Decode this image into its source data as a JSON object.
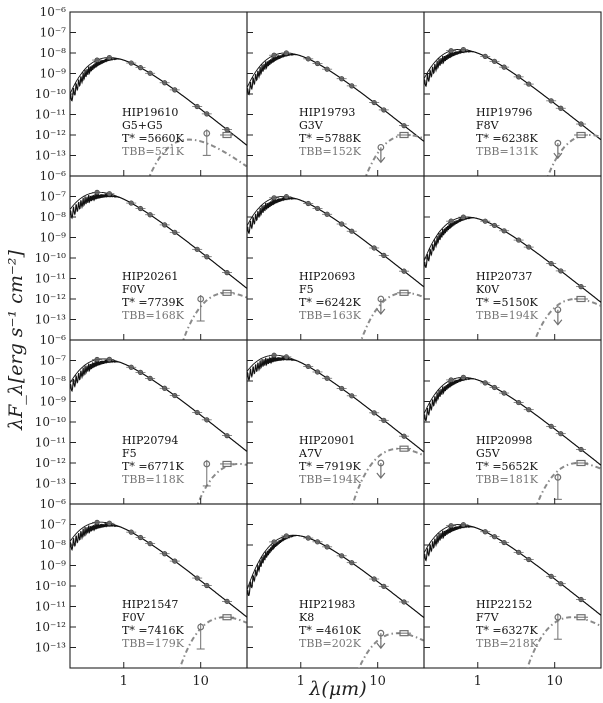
{
  "figure": {
    "y_title": "λF_λ[erg s⁻¹ cm⁻²]",
    "x_title": "λ(μm)"
  },
  "chart_data": {
    "type": "line",
    "grid": false,
    "xscale": "log",
    "yscale": "log",
    "xlim": [
      0.2,
      40
    ],
    "ylim": [
      1e-14,
      1e-06
    ],
    "x_ticks": [
      1,
      10
    ],
    "y_ticks": [
      "10⁻⁶",
      "10⁻⁷",
      "10⁻⁸",
      "10⁻⁹",
      "10⁻¹⁰",
      "10⁻¹¹",
      "10⁻¹²",
      "10⁻¹³"
    ],
    "colors": {
      "photosphere": "#111111",
      "blackbody": "#8a8a8a",
      "photometry": "#6f6f6f"
    },
    "panels": [
      {
        "star": "HIP19610",
        "spt": "G5+G5",
        "teff_label": "T* =5660K",
        "tbb_label": "TBB=521K",
        "teff": 5660,
        "tbb": 521,
        "peak": 6e-09,
        "bb_peak": 6e-13,
        "excess": [
          12,
          1.2e-12
        ],
        "excess2": [
          22,
          1e-12
        ],
        "upper_limit": false
      },
      {
        "star": "HIP19793",
        "spt": "G3V",
        "teff_label": "T* =5788K",
        "tbb_label": "TBB=152K",
        "teff": 5788,
        "tbb": 152,
        "peak": 1e-08,
        "bb_peak": 1e-12,
        "excess": [
          11,
          2.5e-13
        ],
        "excess2": [
          22,
          1e-12
        ],
        "upper_limit": true
      },
      {
        "star": "HIP19796",
        "spt": "F8V",
        "teff_label": "T* =6238K",
        "tbb_label": "TBB=131K",
        "teff": 6238,
        "tbb": 131,
        "peak": 1.5e-08,
        "bb_peak": 1e-12,
        "excess": [
          11,
          4e-13
        ],
        "excess2": [
          22,
          1e-12
        ],
        "upper_limit": true
      },
      {
        "star": "HIP20261",
        "spt": "F0V",
        "teff_label": "T* =7739K",
        "tbb_label": "TBB=168K",
        "teff": 7739,
        "tbb": 168,
        "peak": 1.6e-07,
        "bb_peak": 2e-12,
        "excess": [
          10,
          1e-12
        ],
        "excess2": [
          22,
          2e-12
        ],
        "upper_limit": false
      },
      {
        "star": "HIP20693",
        "spt": "F5",
        "teff_label": "T* =6242K",
        "tbb_label": "TBB=163K",
        "teff": 6242,
        "tbb": 163,
        "peak": 1e-07,
        "bb_peak": 2e-12,
        "excess": [
          11,
          1e-12
        ],
        "excess2": [
          22,
          2e-12
        ],
        "upper_limit": true
      },
      {
        "star": "HIP20737",
        "spt": "K0V",
        "teff_label": "T* =5150K",
        "tbb_label": "TBB=194K",
        "teff": 5150,
        "tbb": 194,
        "peak": 1e-08,
        "bb_peak": 1e-12,
        "excess": [
          11,
          3e-13
        ],
        "excess2": [
          22,
          1e-12
        ],
        "upper_limit": true
      },
      {
        "star": "HIP20794",
        "spt": "F5",
        "teff_label": "T* =6771K",
        "tbb_label": "TBB=118K",
        "teff": 6771,
        "tbb": 118,
        "peak": 1.2e-07,
        "bb_peak": 9e-13,
        "excess": [
          12,
          9e-13
        ],
        "excess2": [
          22,
          9e-13
        ],
        "upper_limit": false
      },
      {
        "star": "HIP20901",
        "spt": "A7V",
        "teff_label": "T* =7919K",
        "tbb_label": "TBB=194K",
        "teff": 7919,
        "tbb": 194,
        "peak": 1.8e-07,
        "bb_peak": 5e-12,
        "excess": [
          11,
          1e-12
        ],
        "excess2": [
          22,
          5e-12
        ],
        "upper_limit": true
      },
      {
        "star": "HIP20998",
        "spt": "G5V",
        "teff_label": "T* =5652K",
        "tbb_label": "TBB=181K",
        "teff": 5652,
        "tbb": 181,
        "peak": 1.5e-08,
        "bb_peak": 1e-12,
        "excess": [
          11,
          2e-13
        ],
        "excess2": [
          22,
          1e-12
        ],
        "upper_limit": false
      },
      {
        "star": "HIP21547",
        "spt": "F0V",
        "teff_label": "T* =7416K",
        "tbb_label": "TBB=179K",
        "teff": 7416,
        "tbb": 179,
        "peak": 1.3e-07,
        "bb_peak": 3e-12,
        "excess": [
          10,
          1e-12
        ],
        "excess2": [
          22,
          3e-12
        ],
        "upper_limit": false
      },
      {
        "star": "HIP21983",
        "spt": "K8",
        "teff_label": "T* =4610K",
        "tbb_label": "TBB=202K",
        "teff": 4610,
        "tbb": 202,
        "peak": 3e-08,
        "bb_peak": 5e-13,
        "excess": [
          11,
          5e-13
        ],
        "excess2": [
          22,
          5e-13
        ],
        "upper_limit": true
      },
      {
        "star": "HIP22152",
        "spt": "F7V",
        "teff_label": "T* =6327K",
        "tbb_label": "TBB=218K",
        "teff": 6327,
        "tbb": 218,
        "peak": 1e-07,
        "bb_peak": 3e-12,
        "excess": [
          11,
          3e-12
        ],
        "excess2": [
          22,
          3e-12
        ],
        "upper_limit": false
      }
    ]
  }
}
